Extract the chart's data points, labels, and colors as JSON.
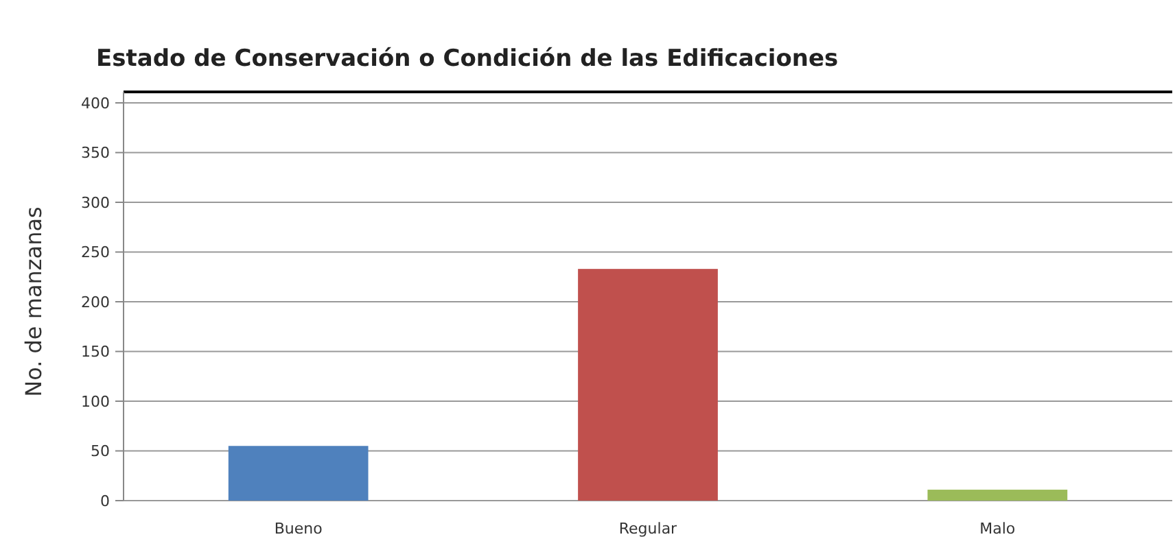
{
  "chart_data": {
    "type": "bar",
    "title": "Estado de Conservación o Condición de las Edificaciones",
    "ylabel": "No. de manzanas",
    "categories": [
      "Bueno",
      "Regular",
      "Malo"
    ],
    "values": [
      55,
      233,
      11
    ],
    "colors": [
      "#4f81bd",
      "#c0504d",
      "#9bbb59"
    ],
    "ylim": [
      0,
      400
    ],
    "yticks": [
      0,
      50,
      100,
      150,
      200,
      250,
      300,
      350,
      400
    ],
    "grid": "y"
  }
}
